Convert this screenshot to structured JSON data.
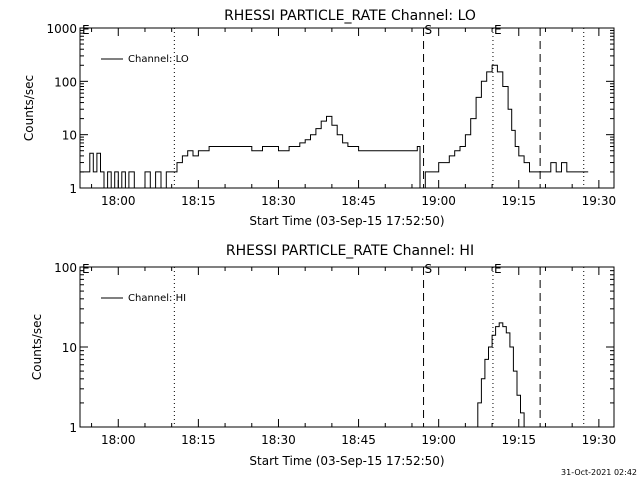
{
  "chart_data": [
    {
      "type": "line",
      "title": "RHESSI PARTICLE_RATE Channel: LO",
      "xlabel": "Start Time (03-Sep-15 17:52:50)",
      "ylabel": "Counts/sec",
      "y_scale": "log",
      "ylim": [
        1,
        1000
      ],
      "xlim": [
        "17:52:50",
        "19:32:50"
      ],
      "x_ticks": [
        "18:00",
        "18:15",
        "18:30",
        "18:45",
        "19:00",
        "19:15",
        "19:30"
      ],
      "y_ticks": [
        "1",
        "10",
        "100",
        "1000"
      ],
      "legend": {
        "position": "top-left",
        "entries": [
          "Channel: LO"
        ]
      },
      "markers": [
        {
          "time": "18:10:30",
          "style": "dotted",
          "label": ""
        },
        {
          "time": "18:57:10",
          "style": "dashed",
          "label": "S"
        },
        {
          "time": "19:10:10",
          "style": "dotted",
          "label": "E"
        },
        {
          "time": "19:19:00",
          "style": "dashed",
          "label": ""
        },
        {
          "time": "19:27:10",
          "style": "dotted",
          "label": ""
        }
      ],
      "series": [
        {
          "name": "Channel: LO",
          "x": [
            "17:52:50",
            "17:54:00",
            "17:54:40",
            "17:55:20",
            "17:56:00",
            "17:56:40",
            "17:57:20",
            "17:58:00",
            "17:58:40",
            "17:59:20",
            "18:00:00",
            "18:00:40",
            "18:01:20",
            "18:02:00",
            "18:03:00",
            "18:04:00",
            "18:05:00",
            "18:06:00",
            "18:07:00",
            "18:08:00",
            "18:09:00",
            "18:10:00",
            "18:11:00",
            "18:12:00",
            "18:13:00",
            "18:14:00",
            "18:15:00",
            "18:17:00",
            "18:20:00",
            "18:23:00",
            "18:25:00",
            "18:27:00",
            "18:29:00",
            "18:30:00",
            "18:32:00",
            "18:34:00",
            "18:35:00",
            "18:36:00",
            "18:37:00",
            "18:38:00",
            "18:39:00",
            "18:40:00",
            "18:41:00",
            "18:42:00",
            "18:43:00",
            "18:45:00",
            "18:48:00",
            "18:51:00",
            "18:54:00",
            "18:55:30",
            "18:56:00",
            "18:56:30",
            "18:57:00",
            "18:57:30",
            "18:58:00",
            "18:59:00",
            "19:00:00",
            "19:01:00",
            "19:02:00",
            "19:03:00",
            "19:04:00",
            "19:05:00",
            "19:06:00",
            "19:07:00",
            "19:08:00",
            "19:09:00",
            "19:10:00",
            "19:11:00",
            "19:12:00",
            "19:13:00",
            "19:13:40",
            "19:14:20",
            "19:15:00",
            "19:16:00",
            "19:17:00",
            "19:18:00",
            "19:19:00",
            "19:20:00",
            "19:21:00",
            "19:22:00",
            "19:23:00",
            "19:24:00",
            "19:25:00",
            "19:26:00",
            "19:27:00",
            "19:28:00"
          ],
          "values": [
            2,
            2,
            4.5,
            2,
            4.5,
            2,
            1,
            2,
            1,
            2,
            1,
            2,
            1,
            2,
            1,
            1,
            2,
            1,
            2,
            1,
            2,
            2,
            3,
            4,
            5,
            4,
            5,
            6,
            6,
            6,
            5,
            6,
            6,
            5,
            6,
            7,
            8,
            10,
            13,
            18,
            22,
            15,
            10,
            7,
            6,
            5,
            5,
            5,
            5,
            5,
            6,
            1,
            1,
            2,
            2,
            2,
            3,
            3,
            4,
            5,
            6,
            10,
            20,
            50,
            100,
            150,
            200,
            150,
            80,
            30,
            12,
            6,
            4,
            3,
            2,
            2,
            2,
            2,
            3,
            2,
            3,
            2,
            2,
            2,
            2,
            2
          ]
        }
      ]
    },
    {
      "type": "line",
      "title": "RHESSI PARTICLE_RATE Channel: HI",
      "xlabel": "Start Time (03-Sep-15 17:52:50)",
      "ylabel": "Counts/sec",
      "y_scale": "log",
      "ylim": [
        1,
        100
      ],
      "xlim": [
        "17:52:50",
        "19:32:50"
      ],
      "x_ticks": [
        "18:00",
        "18:15",
        "18:30",
        "18:45",
        "19:00",
        "19:15",
        "19:30"
      ],
      "y_ticks": [
        "1",
        "10",
        "100"
      ],
      "legend": {
        "position": "top-left",
        "entries": [
          "Channel: HI"
        ]
      },
      "markers": [
        {
          "time": "18:10:30",
          "style": "dotted",
          "label": ""
        },
        {
          "time": "18:57:10",
          "style": "dashed",
          "label": "S"
        },
        {
          "time": "19:10:10",
          "style": "dotted",
          "label": "E"
        },
        {
          "time": "19:19:00",
          "style": "dashed",
          "label": ""
        },
        {
          "time": "19:27:10",
          "style": "dotted",
          "label": ""
        }
      ],
      "series": [
        {
          "name": "Channel: HI",
          "x": [
            "19:06:40",
            "19:07:20",
            "19:08:00",
            "19:08:40",
            "19:09:20",
            "19:10:00",
            "19:10:40",
            "19:11:20",
            "19:12:00",
            "19:12:40",
            "19:13:20",
            "19:14:00",
            "19:14:40",
            "19:15:20",
            "19:16:00"
          ],
          "values": [
            1,
            2,
            4,
            7,
            10,
            14,
            18,
            20,
            18,
            15,
            10,
            5,
            2.5,
            1.5,
            1
          ]
        }
      ]
    }
  ],
  "footer": {
    "date": "31-Oct-2021 02:42"
  },
  "panel_corner_tick_label": "E"
}
